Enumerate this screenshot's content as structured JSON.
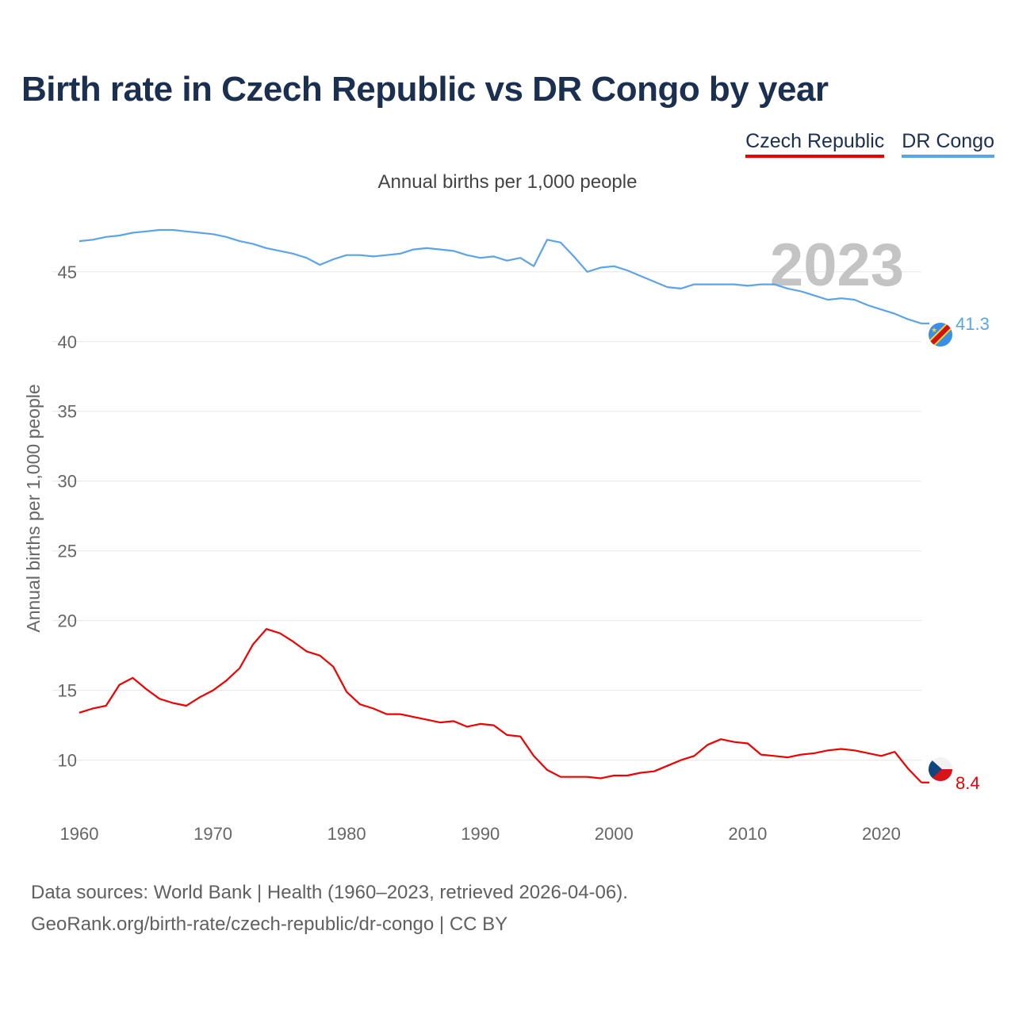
{
  "title": "Birth rate in Czech Republic vs DR Congo by year",
  "subtitle": "Annual births per 1,000 people",
  "legend": [
    {
      "label": "Czech Republic",
      "color": "#ee0000"
    },
    {
      "label": "DR Congo",
      "color": "#5ba4e8"
    }
  ],
  "year_watermark": "2023",
  "source": {
    "line1": "Data sources: World Bank | Health (1960–2023, retrieved 2026-04-06).",
    "line2": "GeoRank.org/birth-rate/czech-republic/dr-congo | CC BY"
  },
  "chart_data": {
    "type": "line",
    "title": "Birth rate in Czech Republic vs DR Congo by year",
    "xlabel": "",
    "ylabel": "Annual births per 1,000 people",
    "xlim": [
      1960,
      2023
    ],
    "ylim": [
      6,
      48
    ],
    "xticks": [
      1960,
      1970,
      1980,
      1990,
      2000,
      2010,
      2020
    ],
    "yticks": [
      10,
      15,
      20,
      25,
      30,
      35,
      40,
      45
    ],
    "grid": true,
    "x": [
      1960,
      1961,
      1962,
      1963,
      1964,
      1965,
      1966,
      1967,
      1968,
      1969,
      1970,
      1971,
      1972,
      1973,
      1974,
      1975,
      1976,
      1977,
      1978,
      1979,
      1980,
      1981,
      1982,
      1983,
      1984,
      1985,
      1986,
      1987,
      1988,
      1989,
      1990,
      1991,
      1992,
      1993,
      1994,
      1995,
      1996,
      1997,
      1998,
      1999,
      2000,
      2001,
      2002,
      2003,
      2004,
      2005,
      2006,
      2007,
      2008,
      2009,
      2010,
      2011,
      2012,
      2013,
      2014,
      2015,
      2016,
      2017,
      2018,
      2019,
      2020,
      2021,
      2022,
      2023
    ],
    "series": [
      {
        "name": "Czech Republic",
        "color": "#ee0000",
        "end_label": "8.4",
        "values": [
          13.4,
          13.7,
          13.9,
          15.4,
          15.9,
          15.1,
          14.4,
          14.1,
          13.9,
          14.5,
          15.0,
          15.7,
          16.6,
          18.3,
          19.4,
          19.1,
          18.5,
          17.8,
          17.5,
          16.7,
          14.9,
          14.0,
          13.7,
          13.3,
          13.3,
          13.1,
          12.9,
          12.7,
          12.8,
          12.4,
          12.6,
          12.5,
          11.8,
          11.7,
          10.3,
          9.3,
          8.8,
          8.8,
          8.8,
          8.7,
          8.9,
          8.9,
          9.1,
          9.2,
          9.6,
          10.0,
          10.3,
          11.1,
          11.5,
          11.3,
          11.2,
          10.4,
          10.3,
          10.2,
          10.4,
          10.5,
          10.7,
          10.8,
          10.7,
          10.5,
          10.3,
          10.6,
          9.4,
          8.4
        ]
      },
      {
        "name": "DR Congo",
        "color": "#5ba4e8",
        "end_label": "41.3",
        "values": [
          47.2,
          47.3,
          47.5,
          47.6,
          47.8,
          47.9,
          48.0,
          48.0,
          47.9,
          47.8,
          47.7,
          47.5,
          47.2,
          47.0,
          46.7,
          46.5,
          46.3,
          46.0,
          45.5,
          45.9,
          46.2,
          46.2,
          46.1,
          46.2,
          46.3,
          46.6,
          46.7,
          46.6,
          46.5,
          46.2,
          46.0,
          46.1,
          45.8,
          46.0,
          45.4,
          47.3,
          47.1,
          46.1,
          45.0,
          45.3,
          45.4,
          45.1,
          44.7,
          44.3,
          43.9,
          43.8,
          44.1,
          44.1,
          44.1,
          44.1,
          44.0,
          44.1,
          44.1,
          43.8,
          43.6,
          43.3,
          43.0,
          43.1,
          43.0,
          42.6,
          42.3,
          42.0,
          41.6,
          41.3
        ]
      }
    ]
  }
}
